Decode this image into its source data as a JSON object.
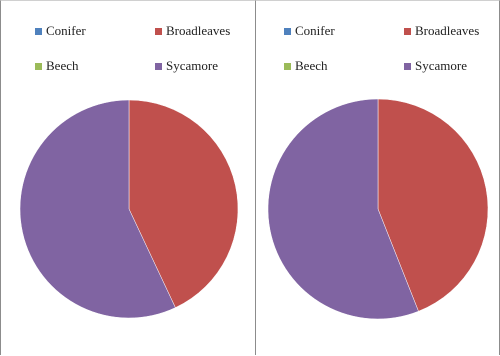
{
  "chart_data": [
    {
      "type": "pie",
      "legend_position": "top",
      "categories": [
        "Conifer",
        "Broadleaves",
        "Beech",
        "Sycamore"
      ],
      "values": [
        0,
        43,
        0,
        57
      ],
      "colors": [
        "#4f81bd",
        "#c0504d",
        "#9bbb59",
        "#8064a2"
      ]
    },
    {
      "type": "pie",
      "legend_position": "top",
      "categories": [
        "Conifer",
        "Broadleaves",
        "Beech",
        "Sycamore"
      ],
      "values": [
        0,
        44,
        0,
        56
      ],
      "colors": [
        "#4f81bd",
        "#c0504d",
        "#9bbb59",
        "#8064a2"
      ]
    }
  ]
}
